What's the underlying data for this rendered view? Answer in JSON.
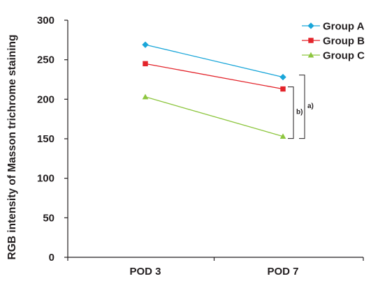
{
  "chart_data": {
    "type": "line",
    "categories": [
      "POD 3",
      "POD 7"
    ],
    "series": [
      {
        "name": "Group A",
        "values": [
          269,
          228
        ],
        "color": "#1aa6d9",
        "marker": "diamond"
      },
      {
        "name": "Group B",
        "values": [
          245,
          213
        ],
        "color": "#e3242b",
        "marker": "square"
      },
      {
        "name": "Group C",
        "values": [
          203,
          153
        ],
        "color": "#8dc63f",
        "marker": "triangle"
      }
    ],
    "title": "",
    "xlabel": "",
    "ylabel": "RGB intensity of Masson trichrome staining",
    "ylim": [
      0,
      300
    ],
    "yticks": [
      0,
      50,
      100,
      150,
      200,
      250,
      300
    ],
    "grid": false,
    "legend_position": "top-right",
    "annotations": [
      {
        "label": "a)",
        "between": [
          "Group A",
          "Group C"
        ],
        "at": "POD 7"
      },
      {
        "label": "b)",
        "between": [
          "Group B",
          "Group C"
        ],
        "at": "POD 7"
      }
    ]
  }
}
